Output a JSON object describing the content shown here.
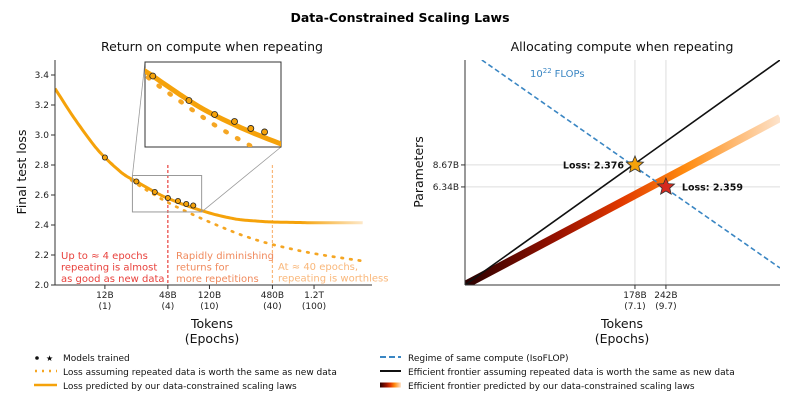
{
  "title": "Data-Constrained Scaling Laws",
  "colors": {
    "orange": "#f5a20a",
    "dotted": "#f5a623",
    "red_line": "#e8413c",
    "light_orange": "#f9b77a",
    "blue": "#3a86c3",
    "black": "#111111"
  },
  "chart_data": [
    {
      "type": "line",
      "title": "Return on compute when repeating",
      "xlabel": "Tokens",
      "xlabel2": "(Epochs)",
      "ylabel": "Final test loss",
      "xscale": "log",
      "xlim": [
        4000000000.0,
        4300000000000.0
      ],
      "ylim": [
        2.0,
        3.5
      ],
      "yticks": [
        "2.0",
        "2.2",
        "2.4",
        "2.6",
        "2.8",
        "3.0",
        "3.2",
        "3.4"
      ],
      "xticks": [
        {
          "value": 12000000000.0,
          "label": "12B",
          "epochs": "(1)"
        },
        {
          "value": 48000000000.0,
          "label": "48B",
          "epochs": "(4)"
        },
        {
          "value": 120000000000.0,
          "label": "120B",
          "epochs": "(10)"
        },
        {
          "value": 480000000000.0,
          "label": "480B",
          "epochs": "(40)"
        },
        {
          "value": 1200000000000.0,
          "label": "1.2T",
          "epochs": "(100)"
        }
      ],
      "models_trained": {
        "x": [
          12000000000.0,
          24000000000.0,
          36000000000.0,
          48000000000.0,
          60000000000.0,
          72000000000.0,
          84000000000.0
        ],
        "y": [
          2.85,
          2.69,
          2.62,
          2.58,
          2.56,
          2.54,
          2.53
        ]
      },
      "series": [
        {
          "name": "Loss predicted by our data-constrained scaling laws",
          "style": "solid",
          "x": [
            4000000000.0,
            6000000000.0,
            9000000000.0,
            12000000000.0,
            18000000000.0,
            24000000000.0,
            36000000000.0,
            48000000000.0,
            72000000000.0,
            120000000000.0,
            180000000000.0,
            240000000000.0,
            360000000000.0,
            480000000000.0,
            800000000000.0,
            1200000000000.0,
            2000000000000.0,
            3500000000000.0
          ],
          "y": [
            3.31,
            3.12,
            2.95,
            2.85,
            2.74,
            2.69,
            2.62,
            2.578,
            2.53,
            2.48,
            2.45,
            2.435,
            2.425,
            2.42,
            2.417,
            2.415,
            2.415,
            2.415
          ]
        },
        {
          "name": "Loss assuming repeated data is worth the same as new data",
          "style": "dotted",
          "x": [
            12000000000.0,
            18000000000.0,
            24000000000.0,
            36000000000.0,
            48000000000.0,
            72000000000.0,
            120000000000.0,
            240000000000.0,
            480000000000.0,
            1200000000000.0,
            3500000000000.0
          ],
          "y": [
            2.85,
            2.74,
            2.675,
            2.6,
            2.55,
            2.49,
            2.42,
            2.335,
            2.27,
            2.21,
            2.16
          ]
        }
      ],
      "inset": {
        "xlim": [
          22000000000.0,
          101000000000.0
        ],
        "ylim": [
          2.487,
          2.73
        ]
      },
      "annotations": [
        {
          "lines": [
            "Up to ≈ 4 epochs",
            "repeating is almost",
            "as good as new data"
          ],
          "color": "#e8413c"
        },
        {
          "lines": [
            "Rapidly diminishing",
            "returns for",
            "more repetitions"
          ],
          "color": "#f08a5d"
        },
        {
          "lines": [
            "At ≈ 40 epochs,",
            "repeating is worthless"
          ],
          "color": "#f9b77a"
        }
      ],
      "vlines": [
        {
          "x": 48000000000.0,
          "color": "#e8413c"
        },
        {
          "x": 480000000000.0,
          "color": "#f9b77a"
        }
      ]
    },
    {
      "type": "line",
      "title": "Allocating compute when repeating",
      "xlabel": "Tokens",
      "xlabel2": "(Epochs)",
      "ylabel": "Parameters",
      "xscale": "log",
      "yscale": "log",
      "xlim": [
        33000000000.0,
        750000000000.0
      ],
      "ylim": [
        1570000000.0,
        38600000000.0
      ],
      "xticks": [
        {
          "value": 178000000000.0,
          "label": "178B",
          "epochs": "(7.1)"
        },
        {
          "value": 242000000000.0,
          "label": "242B",
          "epochs": "(9.7)"
        }
      ],
      "yticks": [
        {
          "value": 8670000000.0,
          "label": "8.67B"
        },
        {
          "value": 6340000000.0,
          "label": "6.34B"
        }
      ],
      "isoflop_label": "10",
      "isoflop_exp": "22",
      "isoflop_unit": "FLOPs",
      "series": [
        {
          "name": "Regime of same compute (IsoFLOP)",
          "style": "dashed",
          "x": [
            39000000000.0,
            750000000000.0
          ],
          "y": [
            38600000000.0,
            2000000000.0
          ]
        },
        {
          "name": "Efficient frontier assuming repeated data is worth the same as new data",
          "style": "solid",
          "x": [
            33000000000.0,
            750000000000.0
          ],
          "y": [
            1570000000.0,
            38600000000.0
          ]
        },
        {
          "name": "Efficient frontier predicted by our data-constrained scaling laws",
          "style": "gradient",
          "x": [
            33000000000.0,
            750000000000.0
          ],
          "y": [
            1570000000.0,
            16900000000.0
          ]
        }
      ],
      "stars": [
        {
          "x": 178000000000.0,
          "y": 8670000000.0,
          "label": "Loss: 2.376",
          "color": "#f5a20a"
        },
        {
          "x": 242000000000.0,
          "y": 6340000000.0,
          "label": "Loss: 2.359",
          "color": "#d62a1e"
        }
      ]
    }
  ],
  "legend": {
    "left": [
      "Models trained",
      "Loss assuming repeated data is worth the same as new data",
      "Loss predicted by our data-constrained scaling laws"
    ],
    "right": [
      "Regime of same compute (IsoFLOP)",
      "Efficient frontier assuming repeated data is worth the same as new data",
      "Efficient frontier predicted by our data-constrained scaling laws"
    ]
  }
}
